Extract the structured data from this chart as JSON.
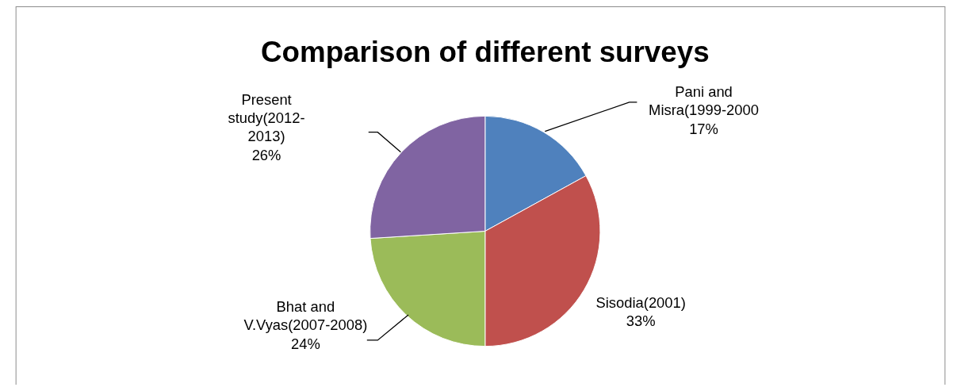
{
  "chart_data": {
    "type": "pie",
    "title": "Comparison of different surveys",
    "categories": [
      "Pani and Misra(1999-2000",
      "Sisodia(2001)",
      "Bhat and V.Vyas(2007-2008)",
      "Present study(2012-2013)"
    ],
    "values": [
      17,
      33,
      24,
      26
    ],
    "colors": [
      "#4f81bd",
      "#c0504d",
      "#9bbb59",
      "#8064a2"
    ],
    "value_labels": [
      "17%",
      "33%",
      "24%",
      "26%"
    ],
    "legend": false
  }
}
